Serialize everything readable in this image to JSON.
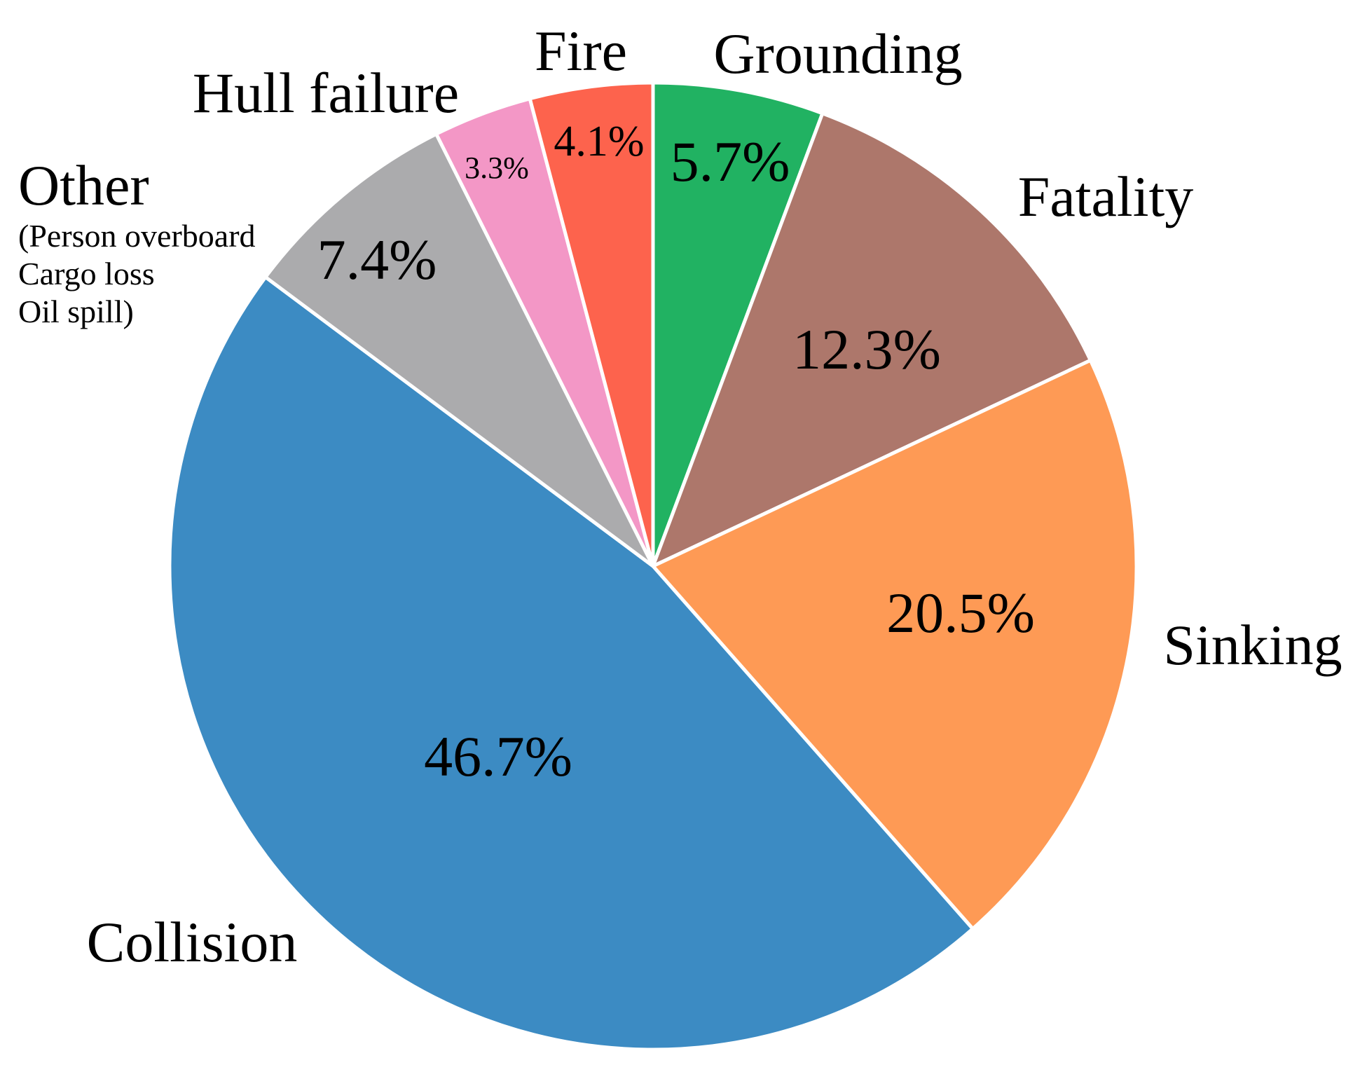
{
  "chart_data": {
    "type": "pie",
    "start_angle_deg": 0,
    "direction": "clockwise",
    "slices": [
      {
        "label": "Grounding",
        "value": 5.7,
        "value_label": "5.7%",
        "color": "#21b262"
      },
      {
        "label": "Fatality",
        "value": 12.3,
        "value_label": "12.3%",
        "color": "#ad776b"
      },
      {
        "label": "Sinking",
        "value": 20.5,
        "value_label": "20.5%",
        "color": "#fe9a55"
      },
      {
        "label": "Collision",
        "value": 46.7,
        "value_label": "46.7%",
        "color": "#3c8bc3"
      },
      {
        "label": "Other",
        "sublabel_lines": [
          "(Person overboard",
          "Cargo loss",
          "Oil spill)"
        ],
        "value": 7.4,
        "value_label": "7.4%",
        "color": "#ababad"
      },
      {
        "label": "Hull failure",
        "value": 3.3,
        "value_label": "3.3%",
        "color": "#f397c6"
      },
      {
        "label": "Fire",
        "value": 4.1,
        "value_label": "4.1%",
        "color": "#fd634d"
      }
    ]
  }
}
